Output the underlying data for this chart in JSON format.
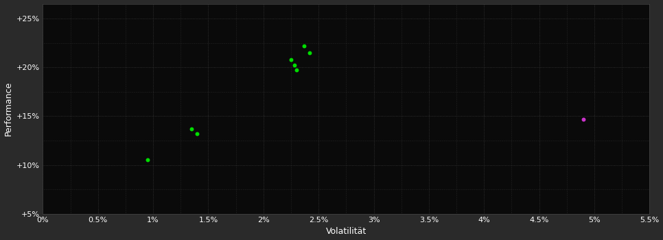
{
  "background_color": "#2a2a2a",
  "plot_bg_color": "#0a0a0a",
  "grid_color": "#3a3a3a",
  "text_color": "#ffffff",
  "xlabel": "Volatilität",
  "ylabel": "Performance",
  "xlim": [
    0.0,
    0.055
  ],
  "ylim": [
    0.05,
    0.265
  ],
  "xticks": [
    0.0,
    0.005,
    0.01,
    0.015,
    0.02,
    0.025,
    0.03,
    0.035,
    0.04,
    0.045,
    0.05,
    0.055
  ],
  "xtick_labels": [
    "0%",
    "0.5%",
    "1%",
    "1.5%",
    "2%",
    "2.5%",
    "3%",
    "3.5%",
    "4%",
    "4.5%",
    "5%",
    "5.5%"
  ],
  "yticks": [
    0.05,
    0.1,
    0.15,
    0.2,
    0.25
  ],
  "ytick_labels": [
    "+5%",
    "+10%",
    "+15%",
    "+20%",
    "+25%"
  ],
  "green_points": [
    [
      0.0095,
      0.105
    ],
    [
      0.0135,
      0.137
    ],
    [
      0.014,
      0.132
    ],
    [
      0.0225,
      0.208
    ],
    [
      0.0228,
      0.202
    ],
    [
      0.023,
      0.197
    ],
    [
      0.0237,
      0.222
    ],
    [
      0.0242,
      0.215
    ]
  ],
  "magenta_points": [
    [
      0.049,
      0.147
    ]
  ],
  "green_color": "#00dd00",
  "magenta_color": "#cc33cc",
  "marker_size": 18
}
